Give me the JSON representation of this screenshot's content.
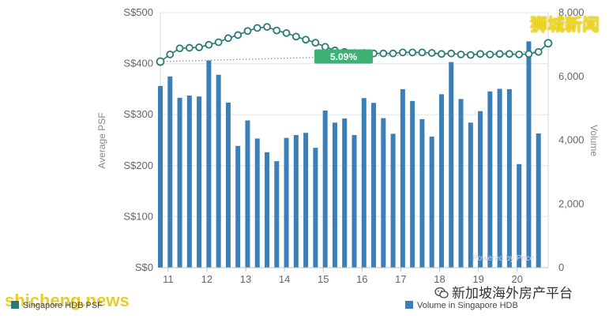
{
  "watermarks": {
    "top_right": "狮城新闻",
    "bottom_left": "shicheng.news",
    "wechat": "新加坡海外房产平台",
    "wechat_icon": "wechat-icon"
  },
  "powered_by": "Powered by Price",
  "chart_data": {
    "type": "bar+line",
    "left_axis": {
      "label": "Average PSF",
      "ticks": [
        "S$0",
        "S$100",
        "S$200",
        "S$300",
        "S$400",
        "S$500"
      ],
      "range": [
        0,
        500
      ]
    },
    "right_axis": {
      "label": "Volume",
      "ticks": [
        "0",
        "2,000",
        "4,000",
        "6,000",
        "8,000"
      ],
      "range": [
        0,
        8000
      ]
    },
    "x_ticks": [
      "11",
      "12",
      "13",
      "14",
      "15",
      "16",
      "17",
      "18",
      "19",
      "20"
    ],
    "x_range": [
      2010.8,
      2020.8
    ],
    "badge": "5.09%",
    "legend": {
      "line_label": "Singapore HDB PSF",
      "bar_label": "Volume in Singapore HDB"
    },
    "colors": {
      "bar": "#3b7fb8",
      "line": "#2a7a73",
      "badge": "#3cb374",
      "trend": "#8899aa"
    },
    "series": [
      {
        "name": "Volume in Singapore HDB",
        "kind": "bar",
        "axis": "right",
        "x": [
          2010.8,
          2011.05,
          2011.3,
          2011.55,
          2011.8,
          2012.05,
          2012.3,
          2012.55,
          2012.8,
          2013.05,
          2013.3,
          2013.55,
          2013.8,
          2014.05,
          2014.3,
          2014.55,
          2014.8,
          2015.05,
          2015.3,
          2015.55,
          2015.8,
          2016.05,
          2016.3,
          2016.55,
          2016.8,
          2017.05,
          2017.3,
          2017.55,
          2017.8,
          2018.05,
          2018.3,
          2018.55,
          2018.8,
          2019.05,
          2019.3,
          2019.55,
          2019.8,
          2020.05,
          2020.3,
          2020.55
        ],
        "values": [
          5700,
          6000,
          5330,
          5400,
          5370,
          6500,
          6050,
          5180,
          3820,
          4620,
          4050,
          3620,
          3340,
          4070,
          4160,
          4230,
          3760,
          4930,
          4550,
          4680,
          4160,
          5320,
          5170,
          4690,
          4200,
          5600,
          5230,
          4660,
          4110,
          5440,
          6450,
          5290,
          4550,
          4910,
          5530,
          5610,
          5600,
          3250,
          7100,
          4210
        ]
      },
      {
        "name": "Singapore HDB PSF",
        "kind": "line",
        "axis": "left",
        "x": [
          2010.8,
          2011.05,
          2011.3,
          2011.55,
          2011.8,
          2012.05,
          2012.3,
          2012.55,
          2012.8,
          2013.05,
          2013.3,
          2013.55,
          2013.8,
          2014.05,
          2014.3,
          2014.55,
          2014.8,
          2015.05,
          2015.3,
          2015.55,
          2015.8,
          2016.05,
          2016.3,
          2016.55,
          2016.8,
          2017.05,
          2017.3,
          2017.55,
          2017.8,
          2018.05,
          2018.3,
          2018.55,
          2018.8,
          2019.05,
          2019.3,
          2019.55,
          2019.8,
          2020.05,
          2020.3,
          2020.55,
          2020.8
        ],
        "values": [
          404,
          418,
          430,
          431,
          432,
          437,
          442,
          450,
          456,
          464,
          470,
          472,
          465,
          460,
          453,
          447,
          441,
          433,
          426,
          423,
          421,
          421,
          420,
          420,
          420,
          422,
          422,
          422,
          421,
          419,
          420,
          418,
          417,
          419,
          418,
          419,
          419,
          418,
          419,
          423,
          440
        ]
      },
      {
        "name": "trend",
        "kind": "dotted-trend",
        "axis": "left",
        "x": [
          2010.8,
          2020.55
        ],
        "values": [
          404,
          424
        ]
      }
    ]
  }
}
